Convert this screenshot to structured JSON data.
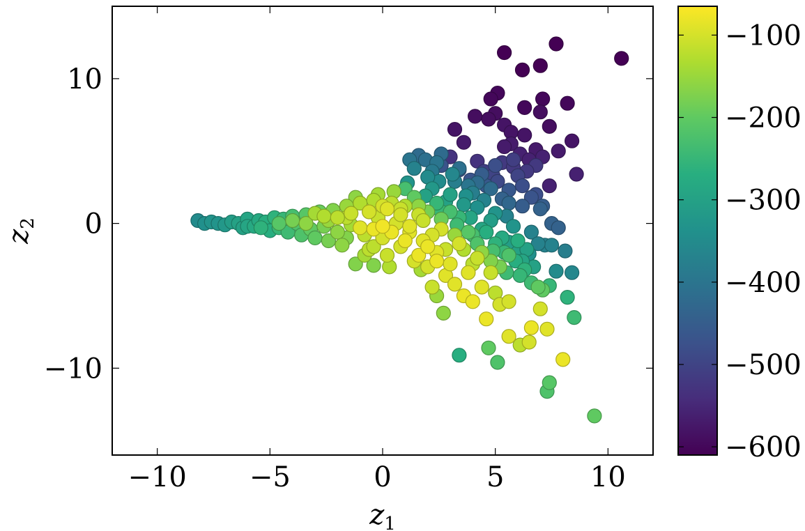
{
  "chart_data": {
    "type": "scatter",
    "title": "",
    "xlabel": "z",
    "xlabel_sub": "1",
    "ylabel": "z",
    "ylabel_sub": "2",
    "xlim": [
      -12,
      12
    ],
    "ylim": [
      -16,
      15
    ],
    "xticks": [
      -10,
      -5,
      0,
      5,
      10
    ],
    "xtick_labels": [
      "−10",
      "−5",
      "0",
      "5",
      "10"
    ],
    "yticks": [
      -10,
      0,
      10
    ],
    "ytick_labels": [
      "−10",
      "0",
      "10"
    ],
    "grid": false,
    "colorbar": {
      "colormap": "viridis",
      "range": [
        -610,
        -65
      ],
      "ticks": [
        -100,
        -200,
        -300,
        -400,
        -500,
        -600
      ],
      "tick_labels": [
        "−100",
        "−200",
        "−300",
        "−400",
        "−500",
        "−600"
      ]
    },
    "points": [
      [
        10.6,
        11.4,
        -610
      ],
      [
        7.7,
        12.4,
        -610
      ],
      [
        5.4,
        11.8,
        -610
      ],
      [
        6.2,
        10.6,
        -610
      ],
      [
        7.0,
        10.9,
        -610
      ],
      [
        5.1,
        9.0,
        -600
      ],
      [
        4.8,
        8.6,
        -600
      ],
      [
        7.1,
        8.6,
        -600
      ],
      [
        8.2,
        8.3,
        -600
      ],
      [
        6.3,
        8.0,
        -600
      ],
      [
        7.0,
        7.7,
        -590
      ],
      [
        5.0,
        7.6,
        -590
      ],
      [
        4.1,
        7.4,
        -590
      ],
      [
        4.7,
        7.2,
        -590
      ],
      [
        7.4,
        6.7,
        -590
      ],
      [
        5.4,
        6.8,
        -580
      ],
      [
        3.2,
        6.5,
        -580
      ],
      [
        5.7,
        6.3,
        -580
      ],
      [
        6.3,
        6.1,
        -580
      ],
      [
        8.4,
        5.7,
        -580
      ],
      [
        3.6,
        5.6,
        -570
      ],
      [
        5.7,
        5.5,
        -570
      ],
      [
        6.8,
        5.1,
        -570
      ],
      [
        7.8,
        5.0,
        -570
      ],
      [
        5.4,
        5.3,
        -570
      ],
      [
        6.1,
        4.8,
        -560
      ],
      [
        7.1,
        4.6,
        -560
      ],
      [
        6.5,
        4.4,
        -560
      ],
      [
        8.6,
        3.4,
        -560
      ],
      [
        7.4,
        2.6,
        -560
      ],
      [
        3.0,
        4.6,
        -530
      ],
      [
        4.2,
        4.3,
        -530
      ],
      [
        5.3,
        4.2,
        -520
      ],
      [
        6.8,
        4.0,
        -520
      ],
      [
        4.5,
        3.6,
        -510
      ],
      [
        5.8,
        3.9,
        -520
      ],
      [
        4.9,
        3.3,
        -500
      ],
      [
        6.0,
        3.3,
        -500
      ],
      [
        5.1,
        2.9,
        -490
      ],
      [
        6.8,
        2.0,
        -480
      ],
      [
        3.4,
        3.7,
        -480
      ],
      [
        2.6,
        4.0,
        -470
      ],
      [
        3.9,
        3.0,
        -470
      ],
      [
        4.6,
        2.6,
        -460
      ],
      [
        5.6,
        2.3,
        -460
      ],
      [
        7.1,
        1.2,
        -450
      ],
      [
        6.2,
        1.2,
        -450
      ],
      [
        5.3,
        1.7,
        -440
      ],
      [
        7.5,
        0.0,
        -440
      ],
      [
        7.8,
        -0.3,
        -440
      ],
      [
        1.6,
        4.7,
        -420
      ],
      [
        2.6,
        4.8,
        -420
      ],
      [
        1.9,
        4.4,
        -410
      ],
      [
        1.2,
        4.4,
        -400
      ],
      [
        2.2,
        3.6,
        -390
      ],
      [
        3.2,
        2.9,
        -380
      ],
      [
        4.0,
        2.1,
        -380
      ],
      [
        4.5,
        1.6,
        -370
      ],
      [
        5.5,
        0.5,
        -370
      ],
      [
        6.6,
        -0.6,
        -370
      ],
      [
        8.1,
        -1.9,
        -380
      ],
      [
        7.2,
        -1.5,
        -370
      ],
      [
        7.5,
        -1.5,
        -370
      ],
      [
        6.9,
        -1.4,
        -370
      ],
      [
        8.4,
        -3.4,
        -360
      ],
      [
        7.7,
        -3.3,
        -350
      ],
      [
        6.5,
        -2.1,
        -340
      ],
      [
        3.1,
        3.4,
        -360
      ],
      [
        2.5,
        2.9,
        -350
      ],
      [
        3.7,
        1.9,
        -340
      ],
      [
        4.2,
        1.1,
        -340
      ],
      [
        5.0,
        0.7,
        -330
      ],
      [
        5.8,
        -0.2,
        -330
      ],
      [
        1.1,
        2.8,
        -330
      ],
      [
        2.2,
        2.4,
        -320
      ],
      [
        3.6,
        1.3,
        -320
      ],
      [
        4.8,
        0.2,
        -310
      ],
      [
        5.6,
        -1.3,
        -310
      ],
      [
        6.0,
        -2.0,
        -300
      ],
      [
        6.7,
        -3.0,
        -300
      ],
      [
        2.8,
        1.5,
        -300
      ],
      [
        1.9,
        1.9,
        -300
      ],
      [
        3.9,
        0.4,
        -290
      ],
      [
        4.4,
        -0.4,
        -290
      ],
      [
        5.3,
        -1.0,
        -280
      ],
      [
        5.9,
        -2.6,
        -270
      ],
      [
        6.3,
        -3.2,
        -260
      ],
      [
        6.1,
        -3.6,
        -250
      ],
      [
        5.5,
        -3.4,
        -240
      ],
      [
        7.4,
        -4.3,
        -250
      ],
      [
        8.2,
        -5.1,
        -260
      ],
      [
        6.6,
        -4.1,
        -240
      ],
      [
        3.4,
        -9.1,
        -270
      ],
      [
        8.5,
        -6.5,
        -240
      ],
      [
        2.6,
        0.8,
        -250
      ],
      [
        3.3,
        -0.1,
        -240
      ],
      [
        4.0,
        -0.8,
        -230
      ],
      [
        4.9,
        -1.9,
        -230
      ],
      [
        -8.2,
        0.2,
        -350
      ],
      [
        -7.9,
        0.0,
        -340
      ],
      [
        -7.6,
        0.1,
        -330
      ],
      [
        -7.3,
        0.0,
        -330
      ],
      [
        -7.0,
        -0.1,
        -320
      ],
      [
        -6.7,
        0.1,
        -310
      ],
      [
        -6.4,
        0.0,
        -300
      ],
      [
        -6.2,
        -0.3,
        -300
      ],
      [
        -6.0,
        0.3,
        -290
      ],
      [
        -5.7,
        -0.2,
        -280
      ],
      [
        -5.5,
        0.2,
        -280
      ],
      [
        -5.2,
        0.1,
        -270
      ],
      [
        -5.0,
        -0.5,
        -270
      ],
      [
        -4.8,
        0.4,
        -260
      ],
      [
        -4.6,
        -0.3,
        -250
      ],
      [
        -4.4,
        0.3,
        -250
      ],
      [
        -4.2,
        -0.6,
        -240
      ],
      [
        -4.0,
        0.5,
        -230
      ],
      [
        -3.8,
        0.0,
        -220
      ],
      [
        -3.6,
        -0.8,
        -220
      ],
      [
        -3.4,
        0.6,
        -210
      ],
      [
        -3.2,
        -0.4,
        -200
      ],
      [
        -3.0,
        -1.0,
        -200
      ],
      [
        -2.8,
        0.8,
        -190
      ],
      [
        -2.6,
        -0.2,
        -180
      ],
      [
        -2.4,
        -1.2,
        -180
      ],
      [
        -2.2,
        0.9,
        -170
      ],
      [
        -2.0,
        -0.6,
        -160
      ],
      [
        -1.8,
        -1.5,
        -160
      ],
      [
        -1.6,
        1.2,
        -150
      ],
      [
        -1.4,
        -0.1,
        -140
      ],
      [
        -1.2,
        -2.8,
        -170
      ],
      [
        -0.4,
        -2.9,
        -170
      ],
      [
        -1.0,
        1.4,
        -130
      ],
      [
        -0.8,
        -0.8,
        -120
      ],
      [
        -0.6,
        -1.8,
        -120
      ],
      [
        -0.4,
        1.6,
        -130
      ],
      [
        -0.2,
        0.4,
        -110
      ],
      [
        0.0,
        -1.0,
        -100
      ],
      [
        0.2,
        -2.2,
        -110
      ],
      [
        0.4,
        1.4,
        -120
      ],
      [
        0.6,
        0.0,
        -100
      ],
      [
        0.8,
        -1.6,
        -100
      ],
      [
        1.0,
        1.2,
        -130
      ],
      [
        1.2,
        -0.6,
        -90
      ],
      [
        1.4,
        -2.6,
        -100
      ],
      [
        1.6,
        0.6,
        -110
      ],
      [
        1.8,
        -1.2,
        -90
      ],
      [
        2.0,
        -3.0,
        -100
      ],
      [
        2.2,
        -4.4,
        -110
      ],
      [
        2.4,
        -2.0,
        -90
      ],
      [
        2.6,
        -0.4,
        -100
      ],
      [
        2.8,
        -3.6,
        -90
      ],
      [
        3.0,
        -2.8,
        -90
      ],
      [
        3.2,
        -4.2,
        -90
      ],
      [
        3.4,
        -1.4,
        -100
      ],
      [
        3.6,
        -5.0,
        -80
      ],
      [
        3.8,
        -3.4,
        -90
      ],
      [
        4.0,
        -5.4,
        -80
      ],
      [
        4.2,
        -2.4,
        -110
      ],
      [
        4.4,
        -4.4,
        -90
      ],
      [
        4.6,
        -6.6,
        -80
      ],
      [
        4.8,
        -3.4,
        -110
      ],
      [
        5.0,
        -4.8,
        -120
      ],
      [
        5.2,
        -5.6,
        -100
      ],
      [
        5.6,
        -5.4,
        -100
      ],
      [
        5.6,
        -7.8,
        -90
      ],
      [
        6.6,
        -7.2,
        -80
      ],
      [
        7.0,
        -5.9,
        -100
      ],
      [
        7.3,
        -7.3,
        -90
      ],
      [
        6.1,
        -8.4,
        -120
      ],
      [
        6.5,
        -8.2,
        -100
      ],
      [
        8.0,
        -9.4,
        -80
      ],
      [
        4.7,
        -8.6,
        -200
      ],
      [
        5.1,
        -9.6,
        -220
      ],
      [
        7.1,
        -4.6,
        -200
      ],
      [
        6.9,
        -4.4,
        -200
      ],
      [
        7.4,
        -11.0,
        -210
      ],
      [
        7.3,
        -11.6,
        -220
      ],
      [
        9.4,
        -13.3,
        -200
      ],
      [
        2.7,
        -6.2,
        -160
      ],
      [
        2.4,
        -5.0,
        -150
      ],
      [
        1.7,
        -3.2,
        -140
      ],
      [
        0.3,
        -3.0,
        -130
      ],
      [
        -0.8,
        -2.2,
        -140
      ],
      [
        -1.6,
        -1.0,
        -170
      ],
      [
        -2.4,
        0.2,
        -150
      ],
      [
        -3.0,
        0.7,
        -140
      ],
      [
        -1.6,
        0.4,
        -120
      ],
      [
        -0.6,
        0.8,
        -100
      ],
      [
        0.2,
        1.0,
        -90
      ],
      [
        0.4,
        -0.6,
        -80
      ],
      [
        1.0,
        -1.2,
        -80
      ],
      [
        1.6,
        -2.2,
        -80
      ],
      [
        2.0,
        -1.6,
        -80
      ],
      [
        2.4,
        -2.6,
        -80
      ],
      [
        0.0,
        -0.2,
        -75
      ],
      [
        -0.4,
        -0.4,
        -80
      ],
      [
        -1.0,
        -0.3,
        -90
      ],
      [
        -1.4,
        0.7,
        -110
      ],
      [
        -2.0,
        0.4,
        -120
      ],
      [
        -2.6,
        0.5,
        -130
      ],
      [
        -3.4,
        0.0,
        -160
      ],
      [
        -4.0,
        0.2,
        -180
      ],
      [
        -4.6,
        0.0,
        -210
      ],
      [
        -5.4,
        -0.3,
        -260
      ],
      [
        -6.0,
        -0.2,
        -290
      ],
      [
        -0.4,
        -1.6,
        -120
      ],
      [
        0.8,
        0.6,
        -100
      ],
      [
        1.2,
        -0.2,
        -90
      ],
      [
        1.8,
        0.2,
        -110
      ],
      [
        2.2,
        -0.8,
        -100
      ],
      [
        2.8,
        -1.8,
        -110
      ],
      [
        3.2,
        -0.8,
        -150
      ],
      [
        3.6,
        -1.8,
        -130
      ],
      [
        4.0,
        -2.8,
        -120
      ],
      [
        4.4,
        -2.0,
        -160
      ],
      [
        4.8,
        -2.6,
        -170
      ],
      [
        5.2,
        -3.0,
        -180
      ],
      [
        5.6,
        -2.2,
        -220
      ],
      [
        6.0,
        -1.2,
        -270
      ],
      [
        1.4,
        1.8,
        -200
      ],
      [
        1.0,
        2.4,
        -230
      ],
      [
        0.5,
        2.2,
        -150
      ],
      [
        -0.2,
        2.0,
        -140
      ],
      [
        -1.2,
        1.8,
        -160
      ],
      [
        0.0,
        1.2,
        -100
      ],
      [
        1.6,
        1.2,
        -160
      ],
      [
        2.0,
        0.8,
        -180
      ],
      [
        2.6,
        0.3,
        -190
      ],
      [
        3.0,
        0.8,
        -230
      ],
      [
        3.4,
        0.4,
        -250
      ],
      [
        3.8,
        -0.6,
        -210
      ],
      [
        4.2,
        -1.4,
        -220
      ],
      [
        4.6,
        -0.6,
        -270
      ],
      [
        5.0,
        -1.4,
        -260
      ],
      [
        5.4,
        -2.0,
        -250
      ],
      [
        6.2,
        -2.6,
        -290
      ],
      [
        6.4,
        -1.8,
        -300
      ],
      [
        2.4,
        1.4,
        -250
      ],
      [
        3.0,
        2.0,
        -300
      ],
      [
        3.8,
        2.6,
        -400
      ],
      [
        4.4,
        3.4,
        -450
      ],
      [
        5.0,
        4.0,
        -480
      ],
      [
        5.8,
        4.4,
        -510
      ],
      [
        6.4,
        3.6,
        -520
      ],
      [
        6.2,
        2.6,
        -480
      ],
      [
        6.6,
        1.8,
        -470
      ],
      [
        7.0,
        1.0,
        -440
      ],
      [
        5.6,
        1.4,
        -430
      ],
      [
        4.8,
        2.4,
        -420
      ],
      [
        4.2,
        2.8,
        -420
      ],
      [
        3.4,
        3.8,
        -410
      ],
      [
        2.4,
        4.2,
        -400
      ],
      [
        1.4,
        3.8,
        -370
      ],
      [
        2.0,
        3.2,
        -350
      ],
      [
        0.8,
        1.0,
        -110
      ]
    ]
  }
}
